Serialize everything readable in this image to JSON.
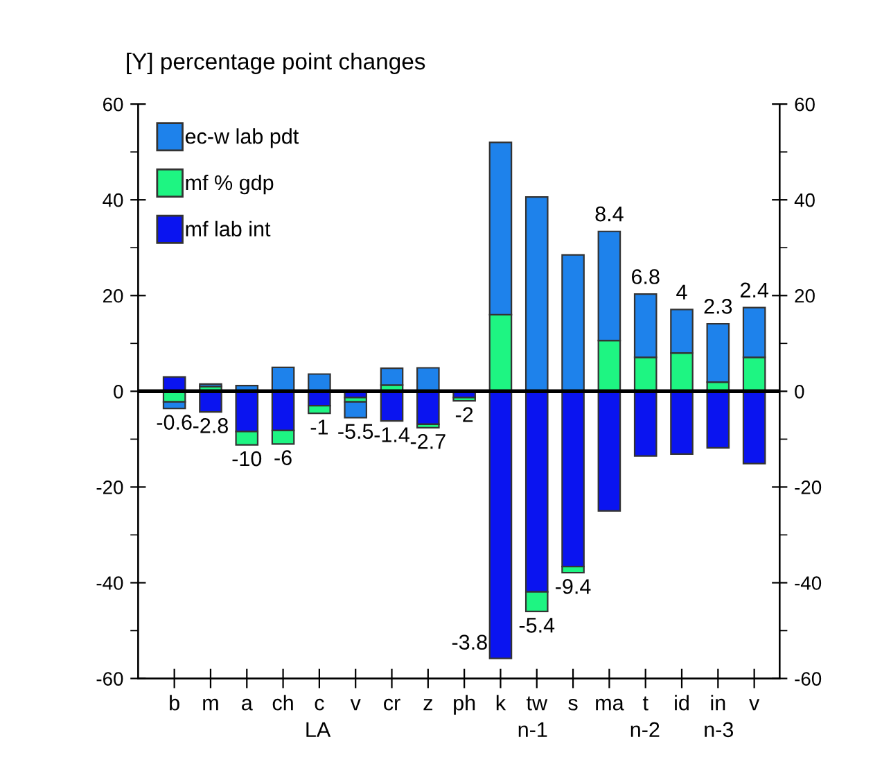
{
  "chart_data": {
    "type": "bar",
    "stacked": true,
    "title": "[Y] percentage point changes",
    "categories": [
      "b",
      "m",
      "a",
      "ch",
      "c",
      "v",
      "cr",
      "z",
      "ph",
      "k",
      "tw",
      "s",
      "ma",
      "t",
      "id",
      "in",
      "v"
    ],
    "series": [
      {
        "name": "mf lab int",
        "color": "#0a14f0",
        "values": [
          3.0,
          -4.3,
          -8.4,
          -8.2,
          -3.0,
          -1.3,
          -6.2,
          -6.9,
          -1.3,
          -55.8,
          -41.9,
          -36.6,
          -25.0,
          -13.5,
          -13.1,
          -11.8,
          -15.1
        ]
      },
      {
        "name": "mf % gdp",
        "color": "#1ef582",
        "values": [
          -2.2,
          1.0,
          -2.8,
          -2.8,
          -1.6,
          -0.9,
          1.3,
          -0.7,
          -0.7,
          16,
          -4.1,
          -1.3,
          10.6,
          7.1,
          8.0,
          1.9,
          7.1
        ]
      },
      {
        "name": "ec-w lab pdt",
        "color": "#1e82eb",
        "values": [
          -1.4,
          0.5,
          1.2,
          5.0,
          3.6,
          -3.3,
          3.5,
          4.9,
          null,
          36,
          40.6,
          28.5,
          22.8,
          13.2,
          9.1,
          12.2,
          10.4
        ]
      }
    ],
    "totals": [
      "-0.6",
      "-2.8",
      "-10",
      "-6",
      "-1",
      "-5.5",
      "-1.4",
      "-2.7",
      "-2",
      "-3.8",
      "-5.4",
      "-9.4",
      "8.4",
      "6.8",
      "4",
      "2.3",
      "2.4"
    ],
    "ylim": [
      -60,
      60
    ],
    "yticks": [
      -60,
      -40,
      -20,
      0,
      20,
      40,
      60
    ],
    "y2lim": [
      -60,
      60
    ],
    "y2ticks": [
      -60,
      -40,
      -20,
      0,
      20,
      40,
      60
    ],
    "ref_lines": [
      {
        "axis": "y",
        "value": 0,
        "color": "#000000"
      }
    ],
    "annotations": [
      "LA",
      "n-1",
      "n-2",
      "n-3"
    ],
    "legend": "top left",
    "grid": false
  }
}
